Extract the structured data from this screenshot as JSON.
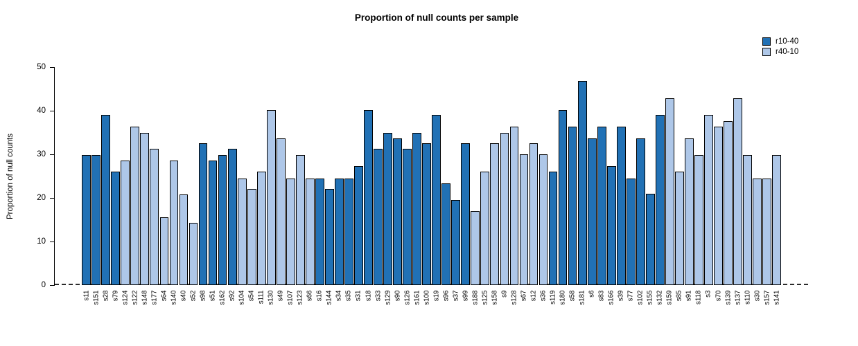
{
  "title": "Proportion of null counts per sample",
  "y_axis": {
    "label": "Proportion of null counts",
    "ticks": [
      0,
      10,
      20,
      30,
      40,
      50
    ]
  },
  "legend": {
    "items": [
      {
        "label": "r10-40",
        "color": "#2171B5"
      },
      {
        "label": "r40-10",
        "color": "#AEC7E8"
      }
    ]
  },
  "chart_data": {
    "type": "bar",
    "title": "Proportion of null counts per sample",
    "xlabel": "",
    "ylabel": "Proportion of null counts",
    "ylim": [
      0,
      50
    ],
    "grid": false,
    "legend_position": "top-right",
    "series_colors": {
      "r10-40": "#2171B5",
      "r40-10": "#AEC7E8"
    },
    "bar_border_color": "#000000",
    "zero_line_style": "dashed",
    "bars": [
      {
        "sample": "s11",
        "group": "r10-40",
        "value": 29.8
      },
      {
        "sample": "s151",
        "group": "r10-40",
        "value": 29.8
      },
      {
        "sample": "s28",
        "group": "r10-40",
        "value": 39.0
      },
      {
        "sample": "s79",
        "group": "r10-40",
        "value": 26.0
      },
      {
        "sample": "s124",
        "group": "r40-10",
        "value": 28.6
      },
      {
        "sample": "s122",
        "group": "r40-10",
        "value": 36.4
      },
      {
        "sample": "s148",
        "group": "r40-10",
        "value": 35.0
      },
      {
        "sample": "s177",
        "group": "r40-10",
        "value": 31.2
      },
      {
        "sample": "s64",
        "group": "r40-10",
        "value": 15.6
      },
      {
        "sample": "s140",
        "group": "r40-10",
        "value": 28.6
      },
      {
        "sample": "s40",
        "group": "r40-10",
        "value": 20.8
      },
      {
        "sample": "s52",
        "group": "r40-10",
        "value": 14.3
      },
      {
        "sample": "s98",
        "group": "r10-40",
        "value": 32.5
      },
      {
        "sample": "s51",
        "group": "r10-40",
        "value": 28.6
      },
      {
        "sample": "s162",
        "group": "r10-40",
        "value": 29.8
      },
      {
        "sample": "s92",
        "group": "r10-40",
        "value": 31.2
      },
      {
        "sample": "s104",
        "group": "r40-10",
        "value": 24.5
      },
      {
        "sample": "s54",
        "group": "r40-10",
        "value": 22.0
      },
      {
        "sample": "s111",
        "group": "r40-10",
        "value": 26.0
      },
      {
        "sample": "s130",
        "group": "r40-10",
        "value": 40.2
      },
      {
        "sample": "s49",
        "group": "r40-10",
        "value": 33.7
      },
      {
        "sample": "s107",
        "group": "r40-10",
        "value": 24.5
      },
      {
        "sample": "s123",
        "group": "r40-10",
        "value": 29.8
      },
      {
        "sample": "s66",
        "group": "r40-10",
        "value": 24.5
      },
      {
        "sample": "s16",
        "group": "r10-40",
        "value": 24.5
      },
      {
        "sample": "s144",
        "group": "r10-40",
        "value": 22.0
      },
      {
        "sample": "s34",
        "group": "r10-40",
        "value": 24.5
      },
      {
        "sample": "s35",
        "group": "r10-40",
        "value": 24.5
      },
      {
        "sample": "s31",
        "group": "r10-40",
        "value": 27.3
      },
      {
        "sample": "s18",
        "group": "r10-40",
        "value": 40.2
      },
      {
        "sample": "s33",
        "group": "r10-40",
        "value": 31.2
      },
      {
        "sample": "s129",
        "group": "r10-40",
        "value": 35.0
      },
      {
        "sample": "s90",
        "group": "r10-40",
        "value": 33.7
      },
      {
        "sample": "s126",
        "group": "r10-40",
        "value": 31.2
      },
      {
        "sample": "s161",
        "group": "r10-40",
        "value": 35.0
      },
      {
        "sample": "s100",
        "group": "r10-40",
        "value": 32.5
      },
      {
        "sample": "s19",
        "group": "r10-40",
        "value": 39.0
      },
      {
        "sample": "s96",
        "group": "r10-40",
        "value": 23.3
      },
      {
        "sample": "s37",
        "group": "r10-40",
        "value": 19.5
      },
      {
        "sample": "s99",
        "group": "r10-40",
        "value": 32.5
      },
      {
        "sample": "s188",
        "group": "r40-10",
        "value": 17.0
      },
      {
        "sample": "s125",
        "group": "r40-10",
        "value": 26.0
      },
      {
        "sample": "s158",
        "group": "r40-10",
        "value": 32.5
      },
      {
        "sample": "s9",
        "group": "r40-10",
        "value": 35.0
      },
      {
        "sample": "s128",
        "group": "r40-10",
        "value": 36.4
      },
      {
        "sample": "s67",
        "group": "r40-10",
        "value": 30.0
      },
      {
        "sample": "s12",
        "group": "r40-10",
        "value": 32.5
      },
      {
        "sample": "s36",
        "group": "r40-10",
        "value": 30.0
      },
      {
        "sample": "s119",
        "group": "r10-40",
        "value": 26.0
      },
      {
        "sample": "s180",
        "group": "r10-40",
        "value": 40.2
      },
      {
        "sample": "s58",
        "group": "r10-40",
        "value": 36.4
      },
      {
        "sample": "s181",
        "group": "r10-40",
        "value": 46.8
      },
      {
        "sample": "s6",
        "group": "r10-40",
        "value": 33.7
      },
      {
        "sample": "s83",
        "group": "r10-40",
        "value": 36.4
      },
      {
        "sample": "s166",
        "group": "r10-40",
        "value": 27.3
      },
      {
        "sample": "s39",
        "group": "r10-40",
        "value": 36.4
      },
      {
        "sample": "s77",
        "group": "r10-40",
        "value": 24.5
      },
      {
        "sample": "s102",
        "group": "r10-40",
        "value": 33.7
      },
      {
        "sample": "s155",
        "group": "r10-40",
        "value": 21.0
      },
      {
        "sample": "s132",
        "group": "r10-40",
        "value": 39.0
      },
      {
        "sample": "s159",
        "group": "r40-10",
        "value": 42.8
      },
      {
        "sample": "s85",
        "group": "r40-10",
        "value": 26.0
      },
      {
        "sample": "s91",
        "group": "r40-10",
        "value": 33.7
      },
      {
        "sample": "s118",
        "group": "r40-10",
        "value": 29.8
      },
      {
        "sample": "s3",
        "group": "r40-10",
        "value": 39.0
      },
      {
        "sample": "s70",
        "group": "r40-10",
        "value": 36.4
      },
      {
        "sample": "s139",
        "group": "r40-10",
        "value": 37.6
      },
      {
        "sample": "s137",
        "group": "r40-10",
        "value": 42.8
      },
      {
        "sample": "s110",
        "group": "r40-10",
        "value": 29.8
      },
      {
        "sample": "s30",
        "group": "r40-10",
        "value": 24.5
      },
      {
        "sample": "s157",
        "group": "r40-10",
        "value": 24.5
      },
      {
        "sample": "s141",
        "group": "r40-10",
        "value": 29.8
      }
    ]
  }
}
